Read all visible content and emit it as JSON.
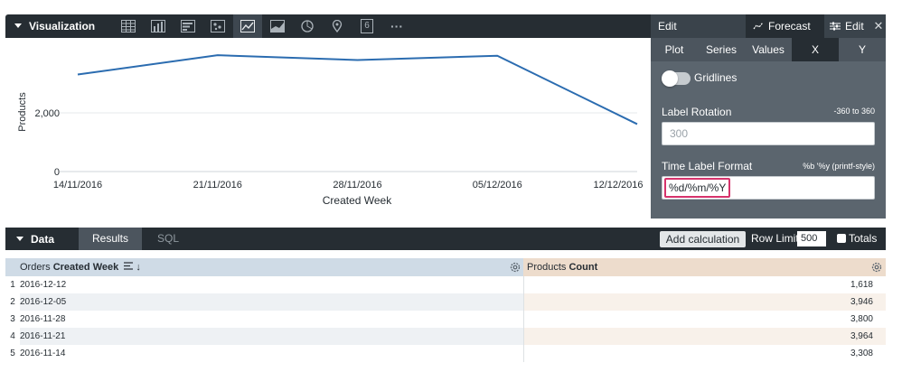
{
  "visualization": {
    "title": "Visualization",
    "toolbar_icons": [
      "table-icon",
      "bar-chart-icon",
      "horizontal-bar-icon",
      "scatter-icon",
      "line-chart-icon",
      "area-chart-icon",
      "pie-chart-icon",
      "map-pin-icon",
      "single-value-icon",
      "more-icon"
    ],
    "active_icon": "line-chart-icon",
    "single_value_glyph": "6",
    "more_glyph": "···"
  },
  "chart_data": {
    "type": "line",
    "x": [
      "14/11/2016",
      "21/11/2016",
      "28/11/2016",
      "05/12/2016",
      "12/12/2016"
    ],
    "series": [
      {
        "name": "",
        "values": [
          3308,
          3964,
          3800,
          3946,
          1618
        ]
      }
    ],
    "xlabel": "Created Week",
    "ylabel": "Products",
    "yticks": [
      "0",
      "2,000"
    ],
    "grid": true,
    "line_color": "#2b6cb0"
  },
  "edit_panel": {
    "title": "Edit",
    "forecast_tab": "Forecast",
    "edit_tab": "Edit",
    "close_glyph": "✕",
    "tabs": [
      "Plot",
      "Series",
      "Values",
      "X",
      "Y"
    ],
    "active_tab": "X",
    "gridlines_label": "Gridlines",
    "gridlines_on": false,
    "label_rotation": {
      "label": "Label Rotation",
      "hint": "-360 to 360",
      "placeholder": "300"
    },
    "time_label_format": {
      "label": "Time Label Format",
      "hint": "%b '%y (printf-style)",
      "value": "%d/%m/%Y"
    }
  },
  "data_bar": {
    "title": "Data",
    "tabs": [
      "Results",
      "SQL"
    ],
    "active_tab": "Results",
    "add_calculation": "Add calculation",
    "row_limit_label": "Row Limit",
    "row_limit_value": "500",
    "totals_label": "Totals",
    "totals_checked": false
  },
  "table": {
    "col1_prefix": "Orders ",
    "col1_bold": "Created Week",
    "col1_sort_glyph": "↓",
    "col2_prefix": "Products ",
    "col2_bold": "Count",
    "rows": [
      {
        "n": "1",
        "week": "2016-12-12",
        "count": "1,618"
      },
      {
        "n": "2",
        "week": "2016-12-05",
        "count": "3,946"
      },
      {
        "n": "3",
        "week": "2016-11-28",
        "count": "3,800"
      },
      {
        "n": "4",
        "week": "2016-11-21",
        "count": "3,964"
      },
      {
        "n": "5",
        "week": "2016-11-14",
        "count": "3,308"
      }
    ]
  },
  "colors": {
    "dark_bar": "#262d33",
    "edit_panel_bg": "#5b656e",
    "dimension_header": "#cfdbe6",
    "measure_header": "#eddccc",
    "highlight": "#d6336c"
  }
}
